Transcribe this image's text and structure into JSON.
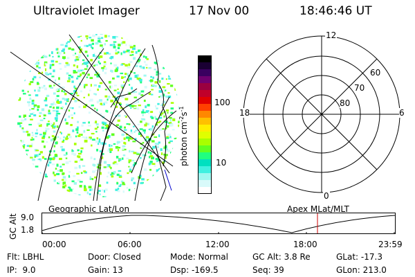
{
  "header": {
    "instrument": "Ultraviolet Imager",
    "date": "17 Nov 00",
    "time": "18:46:46 UT"
  },
  "colorbar": {
    "unit": "photon cm",
    "unit_sup1": "-2",
    "unit_mid": "s",
    "unit_sup2": "-1",
    "tick_high": "100",
    "tick_low": "10",
    "colors": [
      "#000000",
      "#1a0033",
      "#3a0060",
      "#700070",
      "#9a0040",
      "#c0002a",
      "#e00000",
      "#ff4000",
      "#ff8800",
      "#ffc000",
      "#ffee00",
      "#e0ff00",
      "#a8ff00",
      "#60ff20",
      "#20ff80",
      "#00e0c0",
      "#40f0e0",
      "#a0f8f0",
      "#d8fafa",
      "#ffffff"
    ]
  },
  "polar": {
    "top_label": "12",
    "left_label": "18",
    "right_label": "6",
    "bottom_label": "0",
    "ring_labels": [
      "60",
      "70",
      "80"
    ]
  },
  "alt_panel": {
    "left_caption": "Geographic Lat/Lon",
    "right_caption": "Apex MLat/MLT",
    "ylabel": "GC Alt",
    "ytick_high": "9.0",
    "ytick_low": "1.8",
    "xticks": [
      "00:00",
      "06:00",
      "12:00",
      "18:00",
      "23:59"
    ],
    "marker_color": "#cc0000"
  },
  "info_rows": [
    [
      "Flt: LBHL",
      "Door: Closed",
      "Mode: Normal",
      "GC Alt: 3.8 Re",
      "GLat: -17.3"
    ],
    [
      "IP:  9.0",
      "Gain: 13",
      "Dsp: -169.5",
      "Seq: 39",
      "GLon: 213.0"
    ]
  ]
}
